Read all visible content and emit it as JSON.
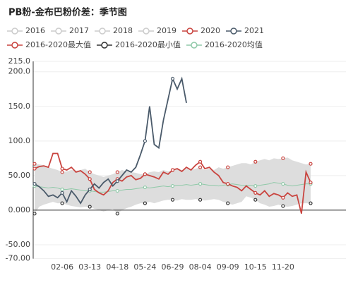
{
  "chart_data": {
    "type": "line",
    "title": "PB粉-金布巴粉价差：季节图",
    "categories": [
      null,
      null,
      null,
      null,
      null,
      null,
      "02-06",
      null,
      null,
      null,
      null,
      null,
      "03-13",
      null,
      null,
      null,
      null,
      null,
      "04-18",
      null,
      null,
      null,
      null,
      null,
      "05-24",
      null,
      null,
      null,
      null,
      null,
      "06-29",
      null,
      null,
      null,
      null,
      null,
      "08-04",
      null,
      null,
      null,
      null,
      null,
      "09-09",
      null,
      null,
      null,
      null,
      null,
      "10-15",
      null,
      null,
      null,
      null,
      null,
      "11-20",
      null,
      null,
      null,
      null,
      null,
      null
    ],
    "inactive_series": [
      {
        "name": "2016"
      },
      {
        "name": "2017"
      },
      {
        "name": "2018"
      },
      {
        "name": "2019"
      }
    ],
    "inactive_color": "#cccccc",
    "series": [
      {
        "name": "2020",
        "color": "#c9443f",
        "line": true,
        "values": [
          60,
          63,
          64,
          62,
          82,
          82,
          60,
          58,
          62,
          55,
          57,
          52,
          45,
          30,
          25,
          22,
          28,
          40,
          45,
          42,
          48,
          50,
          44,
          46,
          52,
          50,
          48,
          45,
          55,
          52,
          58,
          60,
          56,
          62,
          58,
          65,
          70,
          60,
          62,
          55,
          50,
          40,
          38,
          35,
          33,
          28,
          35,
          30,
          25,
          22,
          28,
          20,
          24,
          22,
          18,
          25,
          20,
          22,
          -5,
          55,
          40
        ]
      },
      {
        "name": "2021",
        "color": "#4a5a6a",
        "line": true,
        "values": [
          38,
          34,
          28,
          20,
          22,
          18,
          25,
          12,
          28,
          20,
          10,
          22,
          30,
          38,
          32,
          40,
          45,
          35,
          42,
          50,
          58,
          55,
          62,
          80,
          100,
          150,
          95,
          90,
          130,
          160,
          190,
          175,
          190,
          155,
          null,
          null,
          null,
          null,
          null,
          null,
          null,
          null,
          null,
          null,
          null,
          null,
          null,
          null,
          null,
          null,
          null,
          null,
          null,
          null,
          null,
          null,
          null,
          null,
          null,
          null,
          null
        ]
      },
      {
        "name": "2016-2020最大值",
        "color": "#c9443f",
        "line": false,
        "values": [
          67,
          66,
          65,
          62,
          60,
          58,
          55,
          56,
          58,
          57,
          58,
          60,
          55,
          52,
          50,
          48,
          50,
          52,
          55,
          58,
          56,
          55,
          54,
          52,
          52,
          55,
          56,
          55,
          58,
          56,
          58,
          60,
          58,
          60,
          58,
          60,
          62,
          58,
          60,
          58,
          62,
          60,
          62,
          64,
          66,
          68,
          68,
          66,
          70,
          72,
          74,
          72,
          75,
          74,
          75,
          76,
          72,
          70,
          68,
          66,
          67
        ]
      },
      {
        "name": "2016-2020最小值",
        "color": "#333333",
        "line": false,
        "values": [
          -5,
          5,
          8,
          10,
          12,
          10,
          10,
          8,
          6,
          5,
          4,
          5,
          5,
          2,
          0,
          -2,
          0,
          2,
          -5,
          0,
          3,
          5,
          8,
          10,
          10,
          12,
          10,
          12,
          14,
          15,
          15,
          14,
          16,
          15,
          15,
          16,
          15,
          14,
          15,
          16,
          15,
          12,
          10,
          8,
          10,
          12,
          20,
          18,
          15,
          10,
          8,
          5,
          6,
          8,
          6,
          5,
          6,
          8,
          10,
          10,
          10
        ]
      },
      {
        "name": "2016-2020均值",
        "color": "#8fc9a8",
        "line": true,
        "values": [
          35,
          34,
          33,
          32,
          33,
          32,
          30,
          30,
          31,
          30,
          29,
          28,
          28,
          27,
          26,
          26,
          27,
          28,
          28,
          29,
          30,
          30,
          31,
          32,
          33,
          32,
          33,
          34,
          35,
          34,
          35,
          36,
          36,
          37,
          36,
          37,
          38,
          37,
          36,
          36,
          35,
          36,
          37,
          38,
          37,
          36,
          36,
          36,
          35,
          36,
          37,
          38,
          40,
          39,
          38,
          36,
          35,
          36,
          37,
          38,
          38
        ]
      }
    ],
    "fill_between_color": "#dddddd",
    "marker_every": 6,
    "ylim": [
      -70,
      215
    ],
    "yticks": [
      {
        "value": -70,
        "label": "-70.00"
      },
      {
        "value": -50,
        "label": "-50.00"
      },
      {
        "value": 0,
        "label": "0.000"
      },
      {
        "value": 50,
        "label": "50.00"
      },
      {
        "value": 100,
        "label": "100.0"
      },
      {
        "value": 150,
        "label": "150.0"
      },
      {
        "value": 200,
        "label": "200.0"
      },
      {
        "value": 215,
        "label": "215.0"
      }
    ],
    "grid": true
  }
}
